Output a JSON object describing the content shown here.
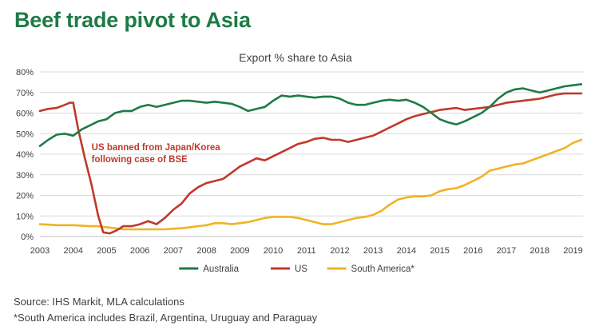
{
  "page": {
    "title": "Beef trade pivot to Asia",
    "source_note": "Source: IHS Markit, MLA calculations",
    "footnote": "*South America includes Brazil, Argentina, Uruguay and Paraguay"
  },
  "chart_data": {
    "type": "line",
    "title": "Export % share to Asia",
    "xlabel": "",
    "ylabel": "",
    "xlim": [
      2003,
      2019.3
    ],
    "ylim": [
      0,
      80
    ],
    "x_ticks": [
      "2003",
      "2004",
      "2005",
      "2006",
      "2007",
      "2008",
      "2009",
      "2010",
      "2011",
      "2012",
      "2013",
      "2014",
      "2015",
      "2016",
      "2017",
      "2018",
      "2019"
    ],
    "y_ticks": [
      "0%",
      "10%",
      "20%",
      "30%",
      "40%",
      "50%",
      "60%",
      "70%",
      "80%"
    ],
    "grid": "horizontal",
    "legend_position": "bottom",
    "annotation": {
      "lines": [
        "US banned from Japan/Korea",
        "following case of BSE"
      ],
      "x": 2004.55,
      "y": 42,
      "color": "#c0392b"
    },
    "series": [
      {
        "name": "Australia",
        "color": "#1e7b45",
        "points": [
          [
            2003.0,
            44
          ],
          [
            2003.25,
            47
          ],
          [
            2003.5,
            49.5
          ],
          [
            2003.75,
            50
          ],
          [
            2004.0,
            49
          ],
          [
            2004.25,
            52
          ],
          [
            2004.5,
            54
          ],
          [
            2004.75,
            56
          ],
          [
            2005.0,
            57
          ],
          [
            2005.25,
            60
          ],
          [
            2005.5,
            61
          ],
          [
            2005.75,
            61
          ],
          [
            2006.0,
            63
          ],
          [
            2006.25,
            64
          ],
          [
            2006.5,
            63
          ],
          [
            2006.75,
            64
          ],
          [
            2007.0,
            65
          ],
          [
            2007.25,
            66
          ],
          [
            2007.5,
            66
          ],
          [
            2007.75,
            65.5
          ],
          [
            2008.0,
            65
          ],
          [
            2008.25,
            65.5
          ],
          [
            2008.5,
            65
          ],
          [
            2008.75,
            64.5
          ],
          [
            2009.0,
            63
          ],
          [
            2009.25,
            61
          ],
          [
            2009.5,
            62
          ],
          [
            2009.75,
            63
          ],
          [
            2010.0,
            66
          ],
          [
            2010.25,
            68.5
          ],
          [
            2010.5,
            68
          ],
          [
            2010.75,
            68.5
          ],
          [
            2011.0,
            68
          ],
          [
            2011.25,
            67.5
          ],
          [
            2011.5,
            68
          ],
          [
            2011.75,
            68
          ],
          [
            2012.0,
            67
          ],
          [
            2012.25,
            65
          ],
          [
            2012.5,
            64
          ],
          [
            2012.75,
            64
          ],
          [
            2013.0,
            65
          ],
          [
            2013.25,
            66
          ],
          [
            2013.5,
            66.5
          ],
          [
            2013.75,
            66
          ],
          [
            2014.0,
            66.5
          ],
          [
            2014.25,
            65
          ],
          [
            2014.5,
            63
          ],
          [
            2014.75,
            60
          ],
          [
            2015.0,
            57
          ],
          [
            2015.25,
            55.5
          ],
          [
            2015.5,
            54.5
          ],
          [
            2015.75,
            56
          ],
          [
            2016.0,
            58
          ],
          [
            2016.25,
            60
          ],
          [
            2016.5,
            63
          ],
          [
            2016.75,
            67
          ],
          [
            2017.0,
            70
          ],
          [
            2017.25,
            71.5
          ],
          [
            2017.5,
            72
          ],
          [
            2017.75,
            71
          ],
          [
            2018.0,
            70
          ],
          [
            2018.25,
            71
          ],
          [
            2018.5,
            72
          ],
          [
            2018.75,
            73
          ],
          [
            2019.0,
            73.5
          ],
          [
            2019.25,
            74
          ]
        ]
      },
      {
        "name": "US",
        "color": "#c0392b",
        "points": [
          [
            2003.0,
            61
          ],
          [
            2003.25,
            62
          ],
          [
            2003.5,
            62.5
          ],
          [
            2003.75,
            64
          ],
          [
            2003.9,
            65
          ],
          [
            2004.0,
            65
          ],
          [
            2004.15,
            52
          ],
          [
            2004.35,
            38
          ],
          [
            2004.55,
            25
          ],
          [
            2004.75,
            10
          ],
          [
            2004.9,
            2
          ],
          [
            2005.1,
            1.5
          ],
          [
            2005.3,
            3
          ],
          [
            2005.5,
            5
          ],
          [
            2005.75,
            5
          ],
          [
            2006.0,
            6
          ],
          [
            2006.25,
            7.5
          ],
          [
            2006.5,
            6
          ],
          [
            2006.75,
            9
          ],
          [
            2007.0,
            13
          ],
          [
            2007.25,
            16
          ],
          [
            2007.5,
            21
          ],
          [
            2007.75,
            24
          ],
          [
            2008.0,
            26
          ],
          [
            2008.25,
            27
          ],
          [
            2008.5,
            28
          ],
          [
            2008.75,
            31
          ],
          [
            2009.0,
            34
          ],
          [
            2009.25,
            36
          ],
          [
            2009.5,
            38
          ],
          [
            2009.75,
            37
          ],
          [
            2010.0,
            39
          ],
          [
            2010.25,
            41
          ],
          [
            2010.5,
            43
          ],
          [
            2010.75,
            45
          ],
          [
            2011.0,
            46
          ],
          [
            2011.25,
            47.5
          ],
          [
            2011.5,
            48
          ],
          [
            2011.75,
            47
          ],
          [
            2012.0,
            47
          ],
          [
            2012.25,
            46
          ],
          [
            2012.5,
            47
          ],
          [
            2012.75,
            48
          ],
          [
            2013.0,
            49
          ],
          [
            2013.25,
            51
          ],
          [
            2013.5,
            53
          ],
          [
            2013.75,
            55
          ],
          [
            2014.0,
            57
          ],
          [
            2014.25,
            58.5
          ],
          [
            2014.5,
            59.5
          ],
          [
            2014.75,
            60.5
          ],
          [
            2015.0,
            61.5
          ],
          [
            2015.25,
            62
          ],
          [
            2015.5,
            62.5
          ],
          [
            2015.75,
            61.5
          ],
          [
            2016.0,
            62
          ],
          [
            2016.25,
            62.5
          ],
          [
            2016.5,
            63
          ],
          [
            2016.75,
            64
          ],
          [
            2017.0,
            65
          ],
          [
            2017.25,
            65.5
          ],
          [
            2017.5,
            66
          ],
          [
            2017.75,
            66.5
          ],
          [
            2018.0,
            67
          ],
          [
            2018.25,
            68
          ],
          [
            2018.5,
            69
          ],
          [
            2018.75,
            69.5
          ],
          [
            2019.0,
            69.5
          ],
          [
            2019.25,
            69.5
          ]
        ]
      },
      {
        "name": "South America*",
        "color": "#f0b323",
        "points": [
          [
            2003.0,
            6
          ],
          [
            2003.25,
            5.8
          ],
          [
            2003.5,
            5.5
          ],
          [
            2003.75,
            5.5
          ],
          [
            2004.0,
            5.5
          ],
          [
            2004.25,
            5.3
          ],
          [
            2004.5,
            5
          ],
          [
            2004.75,
            5
          ],
          [
            2005.0,
            4.5
          ],
          [
            2005.25,
            4
          ],
          [
            2005.5,
            3.5
          ],
          [
            2005.75,
            3.5
          ],
          [
            2006.0,
            3.5
          ],
          [
            2006.25,
            3.5
          ],
          [
            2006.5,
            3.5
          ],
          [
            2006.75,
            3.5
          ],
          [
            2007.0,
            3.8
          ],
          [
            2007.25,
            4
          ],
          [
            2007.5,
            4.5
          ],
          [
            2007.75,
            5
          ],
          [
            2008.0,
            5.5
          ],
          [
            2008.25,
            6.5
          ],
          [
            2008.5,
            6.5
          ],
          [
            2008.75,
            6
          ],
          [
            2009.0,
            6.5
          ],
          [
            2009.25,
            7
          ],
          [
            2009.5,
            8
          ],
          [
            2009.75,
            9
          ],
          [
            2010.0,
            9.5
          ],
          [
            2010.25,
            9.5
          ],
          [
            2010.5,
            9.5
          ],
          [
            2010.75,
            9
          ],
          [
            2011.0,
            8
          ],
          [
            2011.25,
            7
          ],
          [
            2011.5,
            6
          ],
          [
            2011.75,
            6
          ],
          [
            2012.0,
            7
          ],
          [
            2012.25,
            8
          ],
          [
            2012.5,
            9
          ],
          [
            2012.75,
            9.5
          ],
          [
            2013.0,
            10.5
          ],
          [
            2013.25,
            12.5
          ],
          [
            2013.5,
            15.5
          ],
          [
            2013.75,
            18
          ],
          [
            2014.0,
            19
          ],
          [
            2014.25,
            19.5
          ],
          [
            2014.5,
            19.5
          ],
          [
            2014.75,
            20
          ],
          [
            2015.0,
            22
          ],
          [
            2015.25,
            23
          ],
          [
            2015.5,
            23.5
          ],
          [
            2015.75,
            25
          ],
          [
            2016.0,
            27
          ],
          [
            2016.25,
            29
          ],
          [
            2016.5,
            32
          ],
          [
            2016.75,
            33
          ],
          [
            2017.0,
            34
          ],
          [
            2017.25,
            35
          ],
          [
            2017.5,
            35.5
          ],
          [
            2017.75,
            37
          ],
          [
            2018.0,
            38.5
          ],
          [
            2018.25,
            40
          ],
          [
            2018.5,
            41.5
          ],
          [
            2018.75,
            43
          ],
          [
            2019.0,
            45.5
          ],
          [
            2019.25,
            47
          ]
        ]
      }
    ]
  }
}
